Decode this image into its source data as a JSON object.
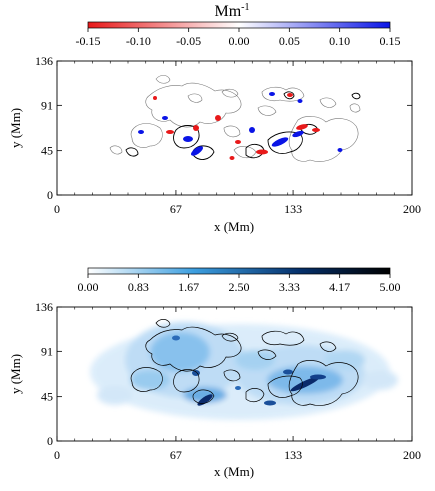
{
  "chart_data": [
    {
      "type": "heatmap",
      "colorbar": {
        "label": "Mm",
        "label_exponent": "-1",
        "ticks": [
          "-0.15",
          "-0.10",
          "-0.05",
          "0.00",
          "0.05",
          "0.10",
          "0.15"
        ],
        "range": [
          -0.15,
          0.15
        ],
        "colors": [
          "#e8191a",
          "#ffffff",
          "#0a14e6"
        ]
      },
      "xlabel": "x (Mm)",
      "ylabel": "y (Mm)",
      "xticks": [
        "0",
        "67",
        "133",
        "200"
      ],
      "yticks": [
        "0",
        "45",
        "91",
        "136"
      ],
      "xlim": [
        0,
        200
      ],
      "ylim": [
        0,
        136
      ]
    },
    {
      "type": "heatmap",
      "colorbar": {
        "ticks": [
          "0.00",
          "0.83",
          "1.67",
          "2.50",
          "3.33",
          "4.17",
          "5.00"
        ],
        "range": [
          0,
          5
        ],
        "colors": [
          "#ffffff",
          "#3d9fe0",
          "#05306b",
          "#000000"
        ]
      },
      "xlabel": "x (Mm)",
      "ylabel": "y (Mm)",
      "xticks": [
        "0",
        "67",
        "133",
        "200"
      ],
      "yticks": [
        "0",
        "45",
        "91",
        "136"
      ],
      "xlim": [
        0,
        200
      ],
      "ylim": [
        0,
        136
      ]
    }
  ]
}
